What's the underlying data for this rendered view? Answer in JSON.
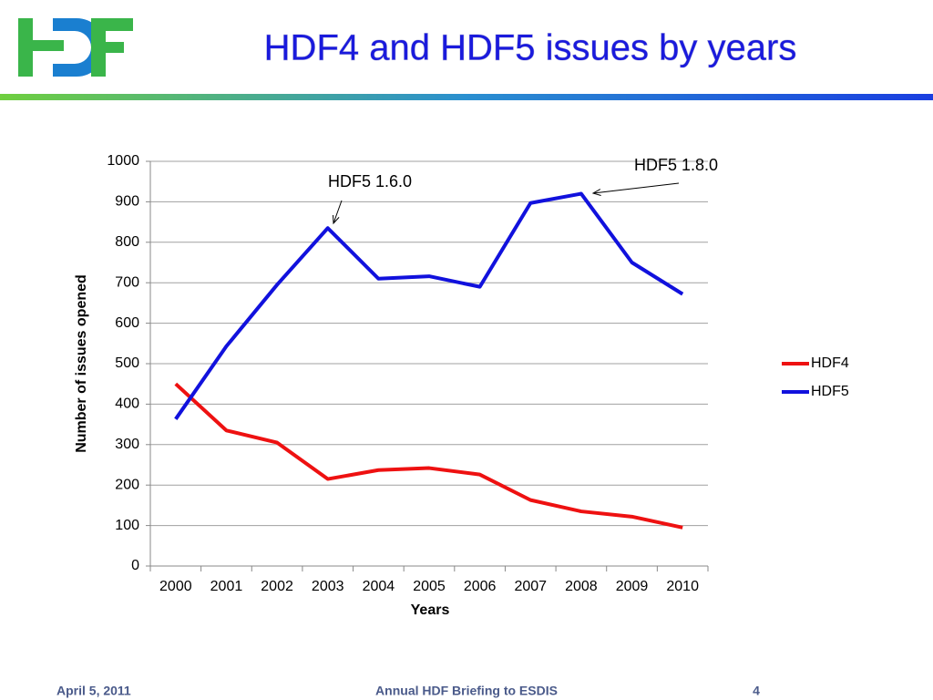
{
  "header": {
    "title": "HDF4 and HDF5 issues by years"
  },
  "footer": {
    "date": "April 5, 2011",
    "event": "Annual HDF Briefing to ESDIS",
    "page": "4"
  },
  "chart_data": {
    "type": "line",
    "x_label": "Years",
    "y_label": "Number of issues opened",
    "categories": [
      "2000",
      "2001",
      "2002",
      "2003",
      "2004",
      "2005",
      "2006",
      "2007",
      "2008",
      "2009",
      "2010"
    ],
    "series": [
      {
        "name": "HDF4",
        "color": "#ee1111",
        "values": [
          450,
          335,
          305,
          215,
          237,
          242,
          226,
          163,
          135,
          122,
          95
        ]
      },
      {
        "name": "HDF5",
        "color": "#1111dd",
        "values": [
          363,
          543,
          695,
          835,
          710,
          716,
          690,
          897,
          920,
          750,
          672
        ]
      }
    ],
    "ylim": [
      0,
      1000
    ],
    "yticks": [
      0,
      100,
      200,
      300,
      400,
      500,
      600,
      700,
      800,
      900,
      1000
    ],
    "grid": true,
    "legend": "right",
    "annotations": [
      "HDF5 1.6.0",
      "HDF5 1.8.0"
    ]
  }
}
